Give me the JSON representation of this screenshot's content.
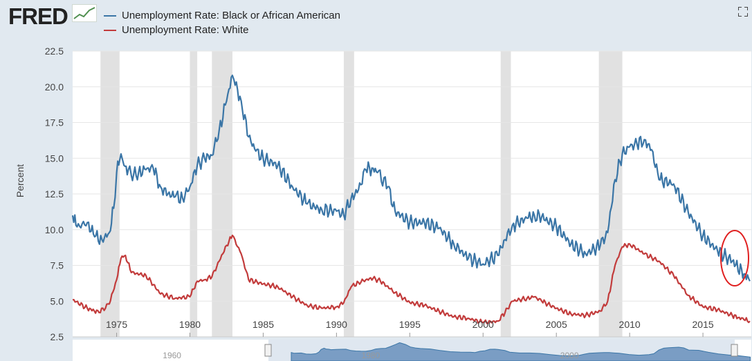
{
  "brand": {
    "name": "FRED"
  },
  "legend": [
    {
      "label": "Unemployment Rate: Black or African American",
      "color": "#3a75a6"
    },
    {
      "label": "Unemployment Rate: White",
      "color": "#c23b3b"
    }
  ],
  "chart_data": {
    "type": "line",
    "title": "",
    "ylabel": "Percent",
    "xlabel": "",
    "xlim": [
      1972.0,
      2018.3
    ],
    "ylim": [
      2.5,
      22.5
    ],
    "yticks": [
      "2.5",
      "5.0",
      "7.5",
      "10.0",
      "12.5",
      "15.0",
      "17.5",
      "20.0",
      "22.5"
    ],
    "xticks": [
      "1975",
      "1980",
      "1985",
      "1990",
      "1995",
      "2000",
      "2005",
      "2010",
      "2015"
    ],
    "recessions": [
      [
        1973.9,
        1975.2
      ],
      [
        1980.0,
        1980.5
      ],
      [
        1981.5,
        1982.9
      ],
      [
        1990.5,
        1991.2
      ],
      [
        2001.2,
        2001.9
      ],
      [
        2007.9,
        2009.5
      ]
    ],
    "series": [
      {
        "name": "Unemployment Rate: Black or African American",
        "color": "#3a75a6",
        "x": [
          1972.0,
          1972.3,
          1973.0,
          1973.5,
          1974.0,
          1974.5,
          1974.8,
          1975.0,
          1975.3,
          1975.5,
          1975.8,
          1976.0,
          1976.5,
          1977.0,
          1977.5,
          1978.0,
          1978.5,
          1979.0,
          1979.5,
          1980.0,
          1980.5,
          1981.0,
          1981.5,
          1982.0,
          1982.5,
          1982.9,
          1983.0,
          1983.5,
          1984.0,
          1984.5,
          1985.0,
          1986.0,
          1987.0,
          1988.0,
          1989.0,
          1990.0,
          1990.5,
          1991.0,
          1991.5,
          1992.0,
          1992.5,
          1992.8,
          1993.5,
          1994.0,
          1995.0,
          1996.0,
          1997.0,
          1998.0,
          1999.0,
          2000.0,
          2001.0,
          2001.5,
          2002.0,
          2003.0,
          2003.5,
          2004.0,
          2005.0,
          2006.0,
          2007.0,
          2008.0,
          2008.5,
          2009.0,
          2009.5,
          2010.0,
          2010.5,
          2011.0,
          2011.5,
          2012.0,
          2013.0,
          2014.0,
          2015.0,
          2016.0,
          2017.0,
          2017.8,
          2018.2
        ],
        "values": [
          11.0,
          10.2,
          10.5,
          9.5,
          9.3,
          9.8,
          11.5,
          14.0,
          15.3,
          14.5,
          14.2,
          13.8,
          14.0,
          14.2,
          14.3,
          13.0,
          12.5,
          12.3,
          12.2,
          13.0,
          14.5,
          15.0,
          15.2,
          17.0,
          19.0,
          20.8,
          20.5,
          19.0,
          16.5,
          15.5,
          15.0,
          14.5,
          13.0,
          11.8,
          11.4,
          11.3,
          11.0,
          12.2,
          12.8,
          14.2,
          14.3,
          14.0,
          13.0,
          11.3,
          10.5,
          10.5,
          10.1,
          9.0,
          8.0,
          7.6,
          8.2,
          9.3,
          10.3,
          10.8,
          11.0,
          10.9,
          10.2,
          9.0,
          8.3,
          8.9,
          9.8,
          13.5,
          15.3,
          15.8,
          16.0,
          16.3,
          15.6,
          13.5,
          13.2,
          11.2,
          9.6,
          8.5,
          7.8,
          6.9,
          6.4
        ]
      },
      {
        "name": "Unemployment Rate: White",
        "color": "#c23b3b",
        "x": [
          1972.0,
          1973.0,
          1973.8,
          1974.5,
          1975.0,
          1975.3,
          1975.6,
          1976.0,
          1977.0,
          1978.0,
          1979.0,
          1980.0,
          1980.5,
          1981.0,
          1981.5,
          1982.0,
          1982.5,
          1982.9,
          1983.5,
          1984.0,
          1985.0,
          1986.0,
          1987.0,
          1988.0,
          1989.0,
          1990.0,
          1990.5,
          1991.0,
          1991.5,
          1992.0,
          1992.5,
          1993.0,
          1994.0,
          1995.0,
          1996.0,
          1997.0,
          1998.0,
          1999.0,
          2000.0,
          2001.0,
          2001.5,
          2002.0,
          2003.0,
          2003.5,
          2004.0,
          2005.0,
          2006.0,
          2007.0,
          2008.0,
          2008.5,
          2009.0,
          2009.5,
          2010.0,
          2011.0,
          2012.0,
          2013.0,
          2014.0,
          2015.0,
          2016.0,
          2017.0,
          2017.8,
          2018.2
        ],
        "values": [
          5.1,
          4.5,
          4.2,
          4.8,
          6.5,
          8.0,
          8.2,
          7.0,
          6.8,
          5.5,
          5.2,
          5.3,
          6.4,
          6.5,
          6.7,
          7.8,
          8.9,
          9.6,
          8.3,
          6.5,
          6.2,
          6.0,
          5.3,
          4.7,
          4.5,
          4.6,
          4.9,
          6.0,
          6.3,
          6.5,
          6.6,
          6.4,
          5.6,
          4.9,
          4.7,
          4.3,
          3.9,
          3.8,
          3.5,
          3.6,
          4.2,
          5.0,
          5.2,
          5.3,
          5.0,
          4.5,
          4.1,
          4.0,
          4.3,
          5.0,
          7.5,
          8.8,
          9.0,
          8.3,
          7.8,
          6.8,
          5.4,
          4.6,
          4.4,
          4.0,
          3.7,
          3.6
        ]
      }
    ],
    "navigator_xticks": [
      "1960",
      "1980",
      "2000"
    ]
  }
}
